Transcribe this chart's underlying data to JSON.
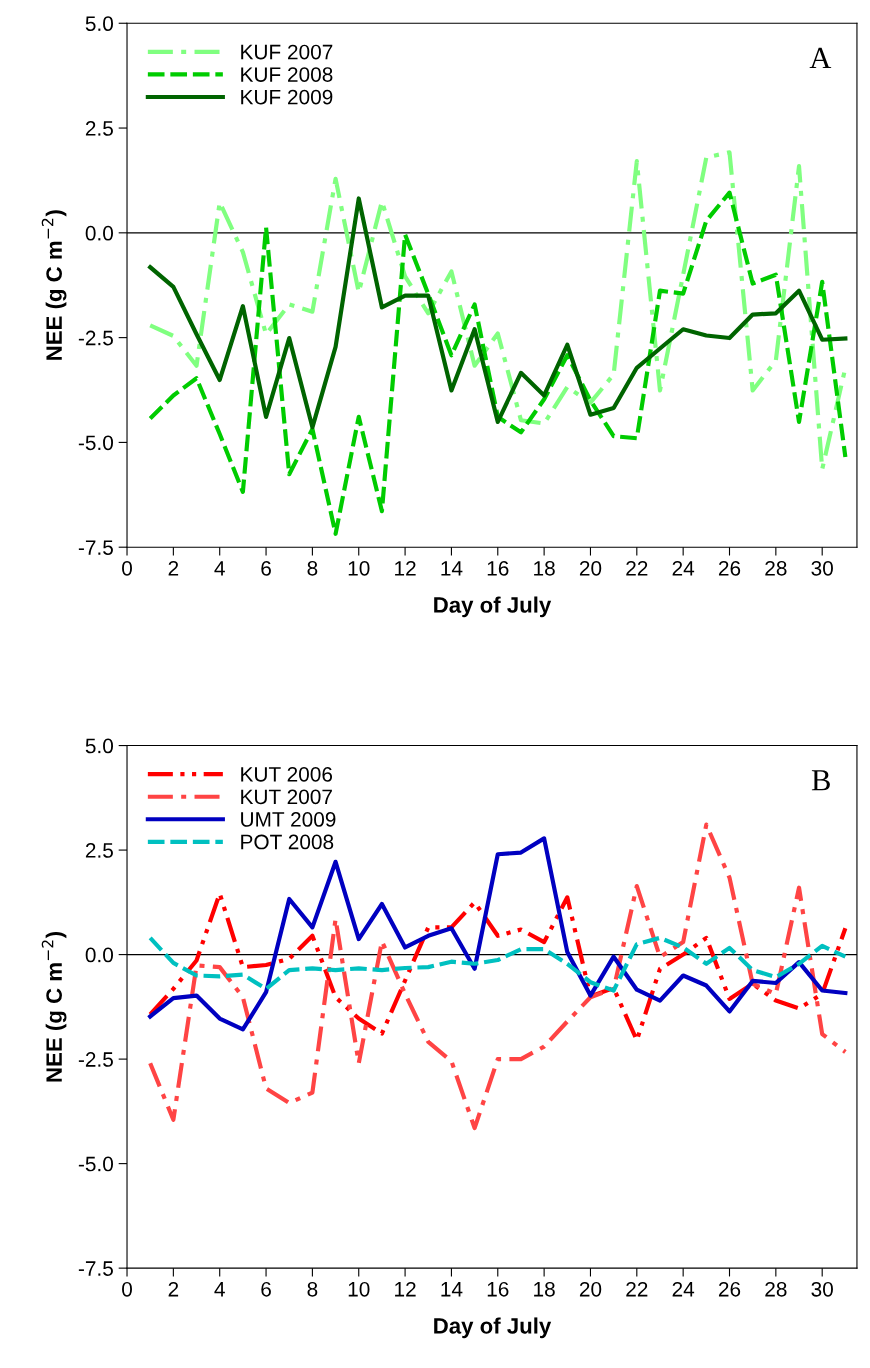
{
  "chart_data": [
    {
      "type": "line",
      "xlabel": "Day of July",
      "ylabel": "NEE (g C m$^{−2}$)",
      "annotations": [
        "A"
      ],
      "x": [
        1,
        2,
        3,
        4,
        5,
        6,
        7,
        8,
        9,
        10,
        11,
        12,
        13,
        14,
        15,
        16,
        17,
        18,
        19,
        20,
        21,
        22,
        23,
        24,
        25,
        26,
        27,
        28,
        29,
        30,
        31
      ],
      "series": [
        {
          "name": "KUF 2007",
          "color": "#80ff80",
          "line_style": "dashdot",
          "values": [
            -2.21,
            -2.46,
            -3.17,
            0.73,
            -0.46,
            -2.42,
            -1.71,
            -1.88,
            1.29,
            -1.42,
            0.75,
            -1.04,
            -1.92,
            -0.92,
            -3.17,
            -2.4,
            -4.47,
            -4.55,
            -3.68,
            -4.05,
            -3.38,
            1.71,
            -3.76,
            -1.0,
            1.8,
            1.92,
            -3.76,
            -3.05,
            1.59,
            -5.64,
            -3.22
          ]
        },
        {
          "name": "KUF 2008",
          "color": "#00cc00",
          "line_style": "dashed",
          "values": [
            -4.43,
            -3.88,
            -3.47,
            -4.8,
            -6.18,
            0.13,
            -5.76,
            -4.68,
            -7.18,
            -4.39,
            -6.64,
            -0.04,
            -1.46,
            -2.92,
            -1.71,
            -4.39,
            -4.76,
            -3.97,
            -2.92,
            -4.0,
            -4.85,
            -4.9,
            -1.38,
            -1.45,
            0.29,
            0.96,
            -1.21,
            -1.0,
            -4.51,
            -1.17,
            -5.35
          ]
        },
        {
          "name": "KUF 2009",
          "color": "#006400",
          "line_style": "solid",
          "values": [
            -0.82,
            -1.29,
            -2.42,
            -3.51,
            -1.75,
            -4.39,
            -2.51,
            -4.64,
            -2.72,
            0.82,
            -1.78,
            -1.5,
            -1.5,
            -3.76,
            -2.3,
            -4.51,
            -3.34,
            -3.88,
            -2.67,
            -4.34,
            -4.18,
            -3.22,
            -2.76,
            -2.3,
            -2.45,
            -2.51,
            -1.95,
            -1.92,
            -1.38,
            -2.55,
            -2.52
          ]
        }
      ],
      "xlim": [
        0,
        31.5
      ],
      "xticks": [
        0,
        2,
        4,
        6,
        8,
        10,
        12,
        14,
        16,
        18,
        20,
        22,
        24,
        26,
        28,
        30
      ],
      "ylim": [
        -7.5,
        5.0
      ],
      "yticks": [
        {
          "value": -7.5,
          "label": "-7.5"
        },
        {
          "value": -5.0,
          "label": "-5.0"
        },
        {
          "value": -2.5,
          "label": "-2.5"
        },
        {
          "value": 0.0,
          "label": "0.0"
        },
        {
          "value": 2.5,
          "label": "2.5"
        },
        {
          "value": 5.0,
          "label": "5.0"
        }
      ],
      "ref_lines": [
        {
          "axis": "y",
          "value": 0,
          "color": "#000000"
        }
      ],
      "legend": "top left",
      "grid": false,
      "marker": "none"
    },
    {
      "type": "line",
      "xlabel": "Day of July",
      "ylabel": "NEE (g C m$^{−2}$)",
      "annotations": [
        "B"
      ],
      "x": [
        1,
        2,
        3,
        4,
        5,
        6,
        7,
        8,
        9,
        10,
        11,
        12,
        13,
        14,
        15,
        16,
        17,
        18,
        19,
        20,
        21,
        22,
        23,
        24,
        25,
        26,
        27,
        28,
        29,
        30,
        31
      ],
      "series": [
        {
          "name": "KUT 2006",
          "color": "#ff0000",
          "line_style": "dashdotdot",
          "values": [
            -1.43,
            -0.82,
            -0.14,
            1.46,
            -0.3,
            -0.25,
            -0.1,
            0.45,
            -1.02,
            -1.53,
            -1.89,
            -0.62,
            0.65,
            0.65,
            1.25,
            0.45,
            0.6,
            0.3,
            1.37,
            -1.0,
            -0.8,
            -2.05,
            -0.34,
            0.0,
            0.4,
            -1.06,
            -0.7,
            -1.1,
            -1.29,
            -0.94,
            0.63
          ]
        },
        {
          "name": "KUT 2007",
          "color": "#ff4444",
          "line_style": "dashdot",
          "values": [
            -2.6,
            -3.95,
            -0.26,
            -0.3,
            -1.02,
            -3.2,
            -3.55,
            -3.3,
            0.85,
            -2.6,
            0.32,
            -0.94,
            -2.09,
            -2.55,
            -4.15,
            -2.5,
            -2.5,
            -2.2,
            -1.6,
            -1.02,
            -0.82,
            1.64,
            -0.06,
            0.3,
            3.11,
            1.84,
            -0.7,
            -0.94,
            1.6,
            -1.9,
            -2.33
          ]
        },
        {
          "name": "UMT 2009",
          "color": "#0000c0",
          "line_style": "solid",
          "values": [
            -1.48,
            -1.04,
            -0.98,
            -1.53,
            -1.79,
            -0.9,
            1.33,
            0.65,
            2.22,
            0.37,
            1.21,
            0.17,
            0.45,
            0.63,
            -0.34,
            2.4,
            2.44,
            2.78,
            0.06,
            -0.98,
            -0.05,
            -0.84,
            -1.1,
            -0.5,
            -0.74,
            -1.36,
            -0.63,
            -0.68,
            -0.18,
            -0.86,
            -0.92
          ]
        },
        {
          "name": "POT 2008",
          "color": "#00c0c0",
          "line_style": "dashed",
          "values": [
            0.4,
            -0.2,
            -0.5,
            -0.52,
            -0.48,
            -0.82,
            -0.37,
            -0.33,
            -0.37,
            -0.33,
            -0.37,
            -0.32,
            -0.3,
            -0.17,
            -0.22,
            -0.13,
            0.13,
            0.13,
            -0.22,
            -0.66,
            -0.86,
            0.25,
            0.4,
            0.17,
            -0.22,
            0.16,
            -0.37,
            -0.54,
            -0.22,
            0.21,
            -0.05
          ]
        }
      ],
      "xlim": [
        0,
        31.5
      ],
      "xticks": [
        0,
        2,
        4,
        6,
        8,
        10,
        12,
        14,
        16,
        18,
        20,
        22,
        24,
        26,
        28,
        30
      ],
      "ylim": [
        -7.5,
        5.0
      ],
      "yticks": [
        {
          "value": -7.5,
          "label": "-7.5"
        },
        {
          "value": -5.0,
          "label": "-5.0"
        },
        {
          "value": -2.5,
          "label": "-2.5"
        },
        {
          "value": 0.0,
          "label": "0.0"
        },
        {
          "value": 2.5,
          "label": "2.5"
        },
        {
          "value": 5.0,
          "label": "5.0"
        }
      ],
      "ref_lines": [
        {
          "axis": "y",
          "value": 0,
          "color": "#000000"
        }
      ],
      "legend": "top left",
      "grid": false,
      "marker": "none"
    }
  ]
}
